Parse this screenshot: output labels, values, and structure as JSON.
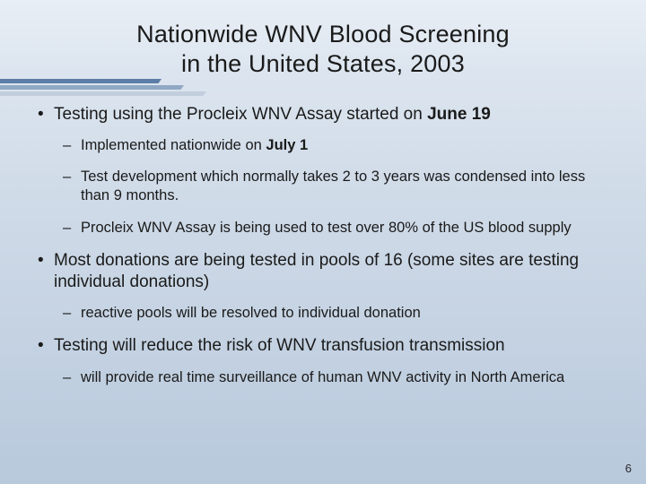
{
  "slide": {
    "title_line1": "Nationwide WNV Blood Screening",
    "title_line2": "in the United States, 2003",
    "page_number": "6"
  },
  "bullets": {
    "b1_pre": "Testing using the Procleix WNV Assay started on ",
    "b1_bold": "June 19",
    "b1_s1_pre": "Implemented nationwide on ",
    "b1_s1_bold": "July 1",
    "b1_s2": "Test development which normally takes 2 to 3 years was condensed into less than 9 months.",
    "b1_s3": "Procleix WNV Assay is being used to test over 80% of the US blood supply",
    "b2": "Most donations are being tested in pools of 16 (some sites are testing individual donations)",
    "b2_s1": "reactive pools will be resolved to individual donation",
    "b3": "Testing will reduce the risk of WNV transfusion transmission",
    "b3_s1": "will provide real time surveillance of human WNV activity in North America"
  },
  "style": {
    "text_color": "#1a1a1a",
    "title_fontsize": 27,
    "lvl1_fontsize": 19,
    "lvl2_fontsize": 16.5,
    "stripe_colors": [
      "#5b7da8",
      "#91a8c4",
      "#c2cedd"
    ],
    "stripe_widths": [
      180,
      205,
      230
    ],
    "stripe_offsets": [
      0,
      7,
      14
    ],
    "background_gradient": [
      "#e8eef5",
      "#dce5ef",
      "#d0dbe8",
      "#c4d2e2",
      "#b8c9dc"
    ]
  }
}
